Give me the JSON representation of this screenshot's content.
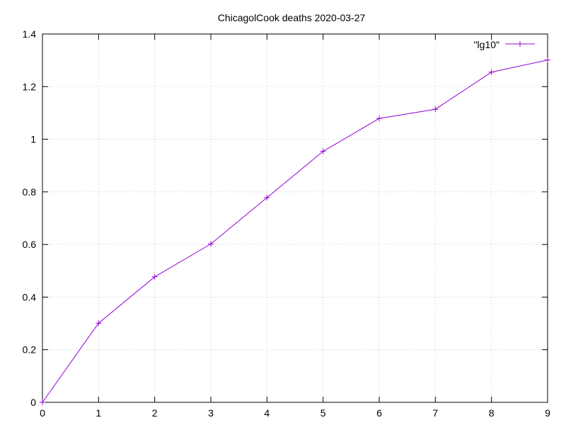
{
  "chart_data": {
    "type": "line",
    "title": "ChicagolCook deaths 2020-03-27",
    "xlabel": "",
    "ylabel": "",
    "xlim": [
      0,
      9
    ],
    "ylim": [
      0,
      1.4
    ],
    "xticks": [
      0,
      1,
      2,
      3,
      4,
      5,
      6,
      7,
      8,
      9
    ],
    "yticks": [
      0,
      0.2,
      0.4,
      0.6,
      0.8,
      1,
      1.2,
      1.4
    ],
    "grid": true,
    "legend_position": "top-right",
    "series": [
      {
        "name": "\"lg10\"",
        "color": "#9400d3",
        "marker": "plus",
        "x": [
          0,
          1,
          2,
          3,
          4,
          5,
          6,
          7,
          8,
          9
        ],
        "y": [
          0,
          0.301,
          0.477,
          0.602,
          0.778,
          0.954,
          1.079,
          1.114,
          1.255,
          1.301
        ]
      }
    ]
  }
}
